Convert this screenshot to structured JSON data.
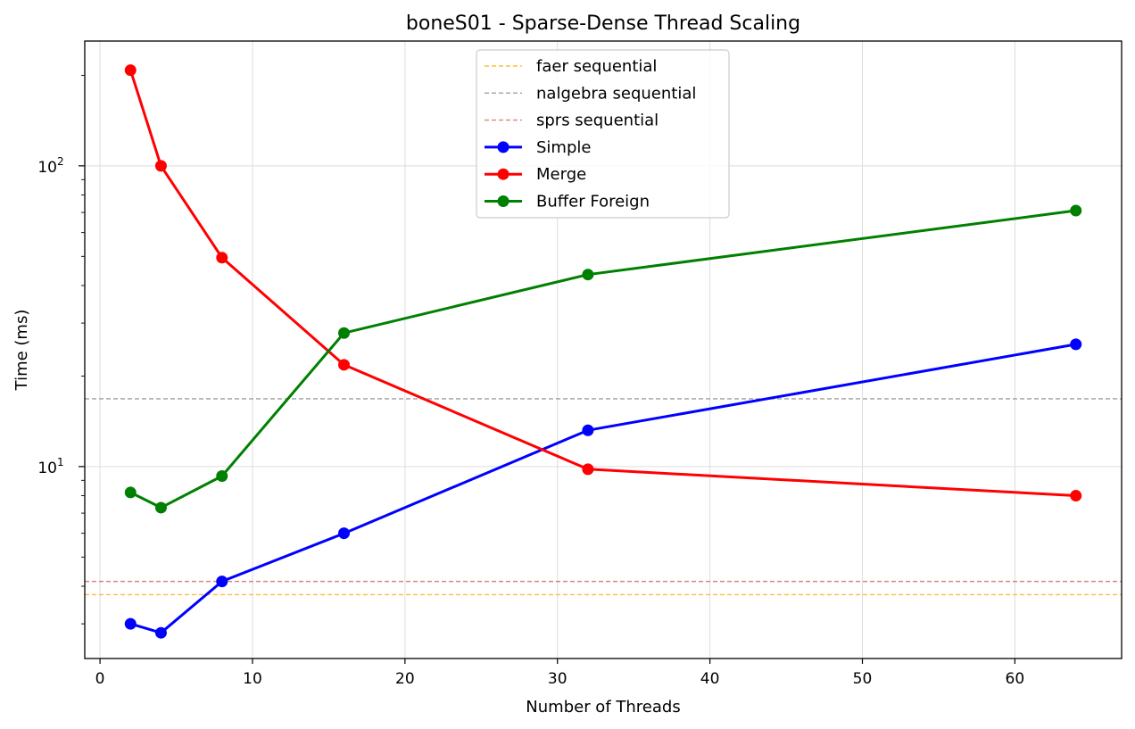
{
  "chart_data": {
    "type": "line",
    "title": "boneS01 - Sparse-Dense Thread Scaling",
    "xlabel": "Number of Threads",
    "ylabel": "Time (ms)",
    "xlim": [
      -1,
      67
    ],
    "ylim": [
      2.3,
      260
    ],
    "yscale": "log",
    "grid": true,
    "legend_position": "upper center",
    "xticks": [
      0,
      10,
      20,
      30,
      40,
      50,
      60
    ],
    "yticks": [
      {
        "base": "10",
        "exp": "1",
        "value": 10
      },
      {
        "base": "10",
        "exp": "2",
        "value": 100
      }
    ],
    "reference_lines": [
      {
        "name": "faer sequential",
        "y": 3.75,
        "color": "#ffa500"
      },
      {
        "name": "nalgebra sequential",
        "y": 16.8,
        "color": "#808080"
      },
      {
        "name": "sprs sequential",
        "y": 4.15,
        "color": "#cd5c5c"
      }
    ],
    "series": [
      {
        "name": "Simple",
        "color": "#0000ff",
        "x": [
          2,
          4,
          8,
          16,
          32,
          64
        ],
        "y": [
          3.0,
          2.8,
          4.15,
          6.0,
          13.2,
          25.5
        ]
      },
      {
        "name": "Merge",
        "color": "#ff0000",
        "x": [
          2,
          4,
          8,
          16,
          32,
          64
        ],
        "y": [
          208,
          100,
          49.5,
          21.8,
          9.8,
          8.0
        ]
      },
      {
        "name": "Buffer Foreign",
        "color": "#008000",
        "x": [
          2,
          4,
          8,
          16,
          32,
          64
        ],
        "y": [
          8.2,
          7.3,
          9.3,
          27.8,
          43.5,
          71
        ]
      }
    ]
  }
}
